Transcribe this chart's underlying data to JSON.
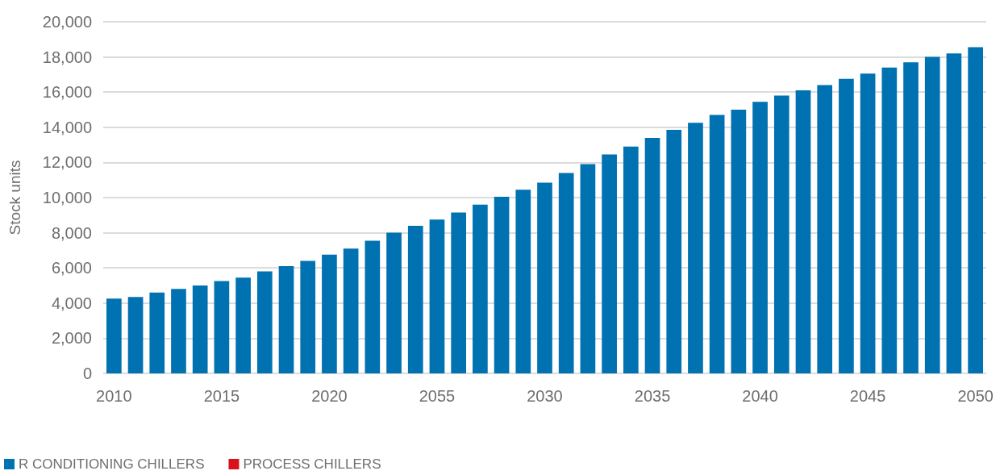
{
  "chart_data": {
    "type": "bar",
    "ylabel": "Stock units",
    "categories": [
      "2010",
      null,
      null,
      null,
      null,
      "2015",
      null,
      null,
      null,
      null,
      "2020",
      null,
      null,
      null,
      null,
      "2055",
      null,
      null,
      null,
      null,
      "2030",
      null,
      null,
      null,
      null,
      "2035",
      null,
      null,
      null,
      null,
      "2040",
      null,
      null,
      null,
      null,
      "2045",
      null,
      null,
      null,
      null,
      "2050"
    ],
    "series": [
      {
        "name": "R CONDITIONING CHILLERS",
        "color": "#0072b2",
        "values": [
          4250,
          4350,
          4600,
          4800,
          5000,
          5250,
          5450,
          5800,
          6100,
          6400,
          6750,
          7100,
          7550,
          8000,
          8400,
          8750,
          9150,
          9600,
          10050,
          10450,
          10850,
          11400,
          11900,
          12450,
          12900,
          13400,
          13850,
          14250,
          14700,
          15000,
          15450,
          15800,
          16100,
          16400,
          16750,
          17050,
          17400,
          17700,
          18000,
          18200,
          18550
        ]
      },
      {
        "name": "PROCESS CHILLERS",
        "color": "#d7121a",
        "values": [
          null,
          null,
          null,
          null,
          null,
          null,
          null,
          null,
          null,
          null,
          null,
          null,
          null,
          null,
          null,
          null,
          null,
          null,
          null,
          null,
          null,
          null,
          null,
          null,
          null,
          null,
          null,
          null,
          null,
          null,
          null,
          null,
          null,
          null,
          null,
          null,
          null,
          null,
          null,
          null,
          null
        ]
      }
    ],
    "ylim": [
      0,
      20000
    ],
    "yticks": [
      0,
      {
        "value": 2000,
        "label": "2,000"
      },
      {
        "value": 4000,
        "label": "4,000"
      },
      {
        "value": 6000,
        "label": "6,000"
      },
      {
        "value": 8000,
        "label": "8,000"
      },
      {
        "value": 10000,
        "label": "10,000"
      },
      {
        "value": 12000,
        "label": "12,000"
      },
      {
        "value": 14000,
        "label": "14,000"
      },
      {
        "value": 16000,
        "label": "16,000"
      },
      {
        "value": 18000,
        "label": "18,000"
      },
      {
        "value": 20000,
        "label": "20,000"
      }
    ],
    "grid": "y",
    "legend": "bottom left"
  }
}
